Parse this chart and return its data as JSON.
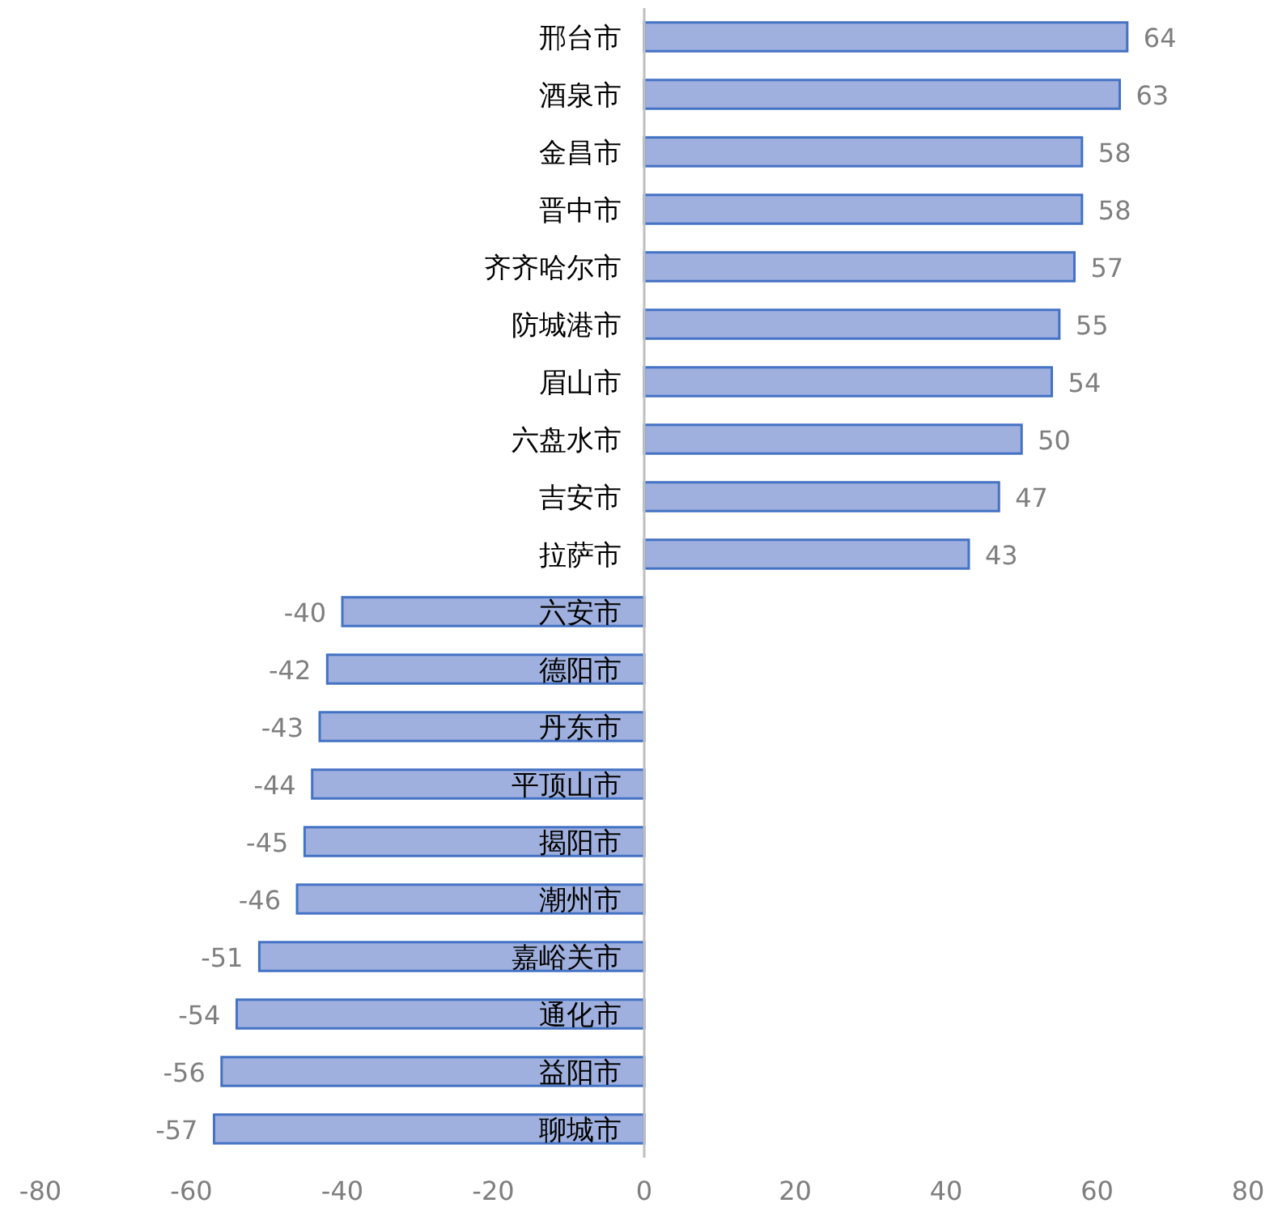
{
  "chart_data": {
    "type": "bar",
    "orientation": "horizontal",
    "data_labels": true,
    "color": "#9fb0de",
    "categories": [
      "邢台市",
      "酒泉市",
      "金昌市",
      "晋中市",
      "齐齐哈尔市",
      "防城港市",
      "眉山市",
      "六盘水市",
      "吉安市",
      "拉萨市",
      "六安市",
      "德阳市",
      "丹东市",
      "平顶山市",
      "揭阳市",
      "潮州市",
      "嘉峪关市",
      "通化市",
      "益阳市",
      "聊城市"
    ],
    "values": [
      64,
      63,
      58,
      58,
      57,
      55,
      54,
      50,
      47,
      43,
      -40,
      -42,
      -43,
      -44,
      -45,
      -46,
      -51,
      -54,
      -56,
      -57
    ],
    "xlim": [
      -80,
      80
    ],
    "xticks": [
      -80,
      -60,
      -40,
      -20,
      0,
      20,
      40,
      60,
      80
    ]
  }
}
